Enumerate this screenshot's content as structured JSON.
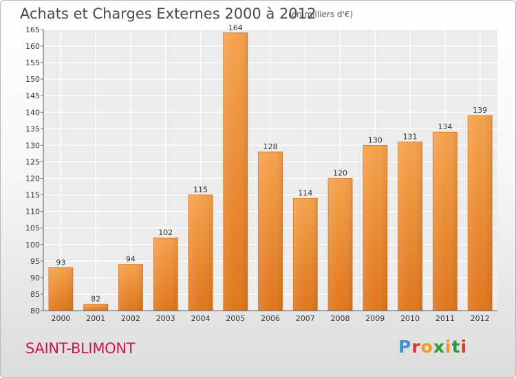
{
  "title": "Achats et Charges Externes 2000 à 2012",
  "unit_note": "(en milliers d'€)",
  "commune": "SAINT-BLIMONT",
  "logo": {
    "letters": [
      "P",
      "r",
      "o",
      "x",
      "i",
      "t",
      "i"
    ],
    "colors": [
      "#3d8fd6",
      "#e0332a",
      "#f39a1e",
      "#2a9c3c",
      "#f39a1e",
      "#2a9c3c",
      "#e0332a"
    ]
  },
  "chart_data": {
    "type": "bar",
    "title": "Achats et Charges Externes 2000 à 2012",
    "xlabel": "",
    "ylabel": "(en milliers d'€)",
    "categories": [
      "2000",
      "2001",
      "2002",
      "2003",
      "2004",
      "2005",
      "2006",
      "2007",
      "2008",
      "2009",
      "2010",
      "2011",
      "2012"
    ],
    "values": [
      93,
      82,
      94,
      102,
      115,
      164,
      128,
      114,
      120,
      130,
      131,
      134,
      139
    ],
    "ylim": [
      80,
      165
    ],
    "yticks": [
      80,
      85,
      90,
      95,
      100,
      105,
      110,
      115,
      120,
      125,
      130,
      135,
      140,
      145,
      150,
      155,
      160,
      165
    ],
    "grid": true,
    "bar_color": "#f09a3e"
  }
}
